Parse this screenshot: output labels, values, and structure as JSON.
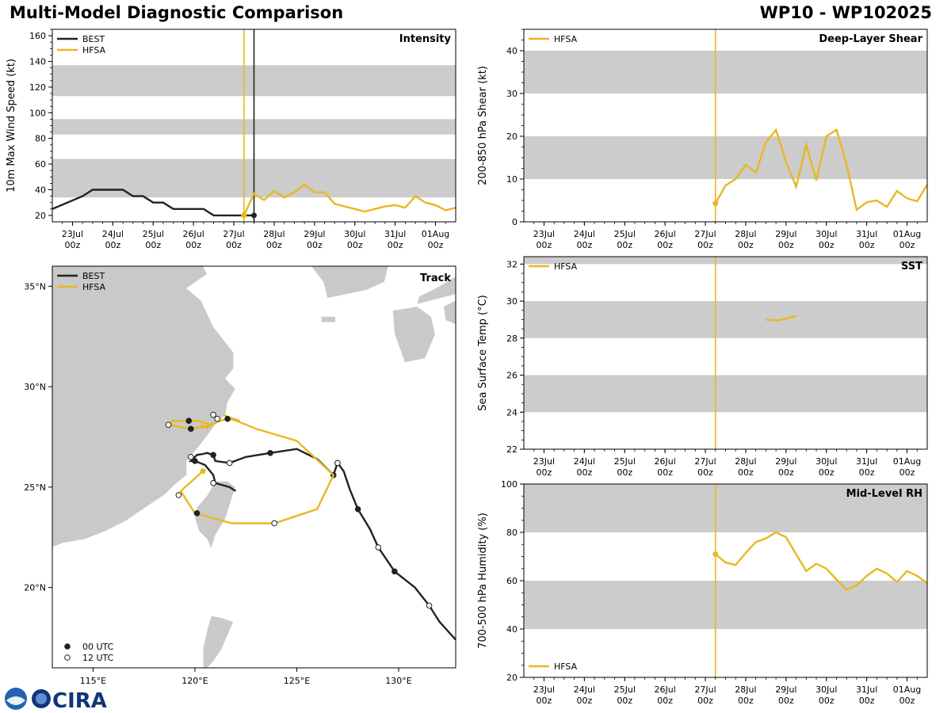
{
  "header": {
    "title": "Multi-Model Diagnostic Comparison",
    "storm_id": "WP10 - WP102025"
  },
  "logo": {
    "name": "CIRA"
  },
  "colors": {
    "best": "#222222",
    "hfsa": "#e8b820",
    "band": "#cccccc",
    "land": "#c9c9c9"
  },
  "time_axis": {
    "start": "22Jul 12z",
    "end": "01Aug 12z",
    "ticks": [
      {
        "t": 0.5,
        "day": "23Jul",
        "hour": "00z"
      },
      {
        "t": 1.5,
        "day": "24Jul",
        "hour": "00z"
      },
      {
        "t": 2.5,
        "day": "25Jul",
        "hour": "00z"
      },
      {
        "t": 3.5,
        "day": "26Jul",
        "hour": "00z"
      },
      {
        "t": 4.5,
        "day": "27Jul",
        "hour": "00z"
      },
      {
        "t": 5.5,
        "day": "28Jul",
        "hour": "00z"
      },
      {
        "t": 6.5,
        "day": "29Jul",
        "hour": "00z"
      },
      {
        "t": 7.5,
        "day": "30Jul",
        "hour": "00z"
      },
      {
        "t": 8.5,
        "day": "31Jul",
        "hour": "00z"
      },
      {
        "t": 9.5,
        "day": "01Aug",
        "hour": "00z"
      }
    ]
  },
  "chart_data": [
    {
      "id": "intensity",
      "type": "line",
      "title": "Intensity",
      "ylabel": "10m Max Wind Speed (kt)",
      "xlim": [
        0,
        10
      ],
      "ylim": [
        15,
        165
      ],
      "yticks": [
        20,
        40,
        60,
        80,
        100,
        120,
        140,
        160
      ],
      "bands": [
        [
          34,
          64
        ],
        [
          83,
          95
        ],
        [
          113,
          137
        ]
      ],
      "vlines": [
        {
          "t": 4.75,
          "series": "HFSA"
        },
        {
          "t": 5.0,
          "series": "BEST"
        }
      ],
      "legend": [
        "BEST",
        "HFSA"
      ],
      "series": [
        {
          "name": "BEST",
          "x": [
            0,
            0.75,
            1,
            1.25,
            1.5,
            1.75,
            2,
            2.25,
            2.5,
            2.75,
            3,
            3.25,
            3.5,
            3.75,
            4,
            4.25,
            4.5,
            4.75,
            5
          ],
          "y": [
            25,
            35,
            40,
            40,
            40,
            40,
            35,
            35,
            30,
            30,
            25,
            25,
            25,
            25,
            20,
            20,
            20,
            20,
            20
          ],
          "end_marker": true
        },
        {
          "name": "HFSA",
          "x": [
            4.75,
            5,
            5.25,
            5.5,
            5.75,
            6,
            6.25,
            6.5,
            6.75,
            7,
            7.25,
            7.5,
            7.75,
            8,
            8.25,
            8.5,
            8.75,
            9,
            9.25,
            9.5,
            9.75,
            10
          ],
          "y": [
            20,
            37,
            32,
            39,
            34,
            38,
            44,
            38,
            38,
            29,
            27,
            25,
            23,
            25,
            27,
            28,
            26,
            35,
            30,
            28,
            24,
            26
          ],
          "start_marker": true
        }
      ]
    },
    {
      "id": "shear",
      "type": "line",
      "title": "Deep-Layer Shear",
      "ylabel": "200-850 hPa Shear (kt)",
      "xlim": [
        0,
        10
      ],
      "ylim": [
        0,
        45
      ],
      "yticks": [
        0,
        10,
        20,
        30,
        40
      ],
      "bands": [
        [
          10,
          20
        ],
        [
          30,
          40
        ]
      ],
      "vlines": [
        {
          "t": 4.75,
          "series": "HFSA"
        }
      ],
      "legend": [
        "HFSA"
      ],
      "series": [
        {
          "name": "HFSA",
          "x": [
            4.75,
            5,
            5.25,
            5.5,
            5.75,
            6,
            6.25,
            6.5,
            6.75,
            7,
            7.25,
            7.5,
            7.75,
            8,
            8.25,
            8.5,
            8.75,
            9,
            9.25,
            9.5,
            9.75,
            10
          ],
          "y": [
            4.3,
            8.5,
            10,
            13.3,
            11.5,
            18.5,
            21.5,
            14,
            8.2,
            18,
            9.7,
            20,
            21.5,
            13.5,
            2.8,
            4.6,
            5,
            3.5,
            7.2,
            5.5,
            4.8,
            8.7
          ],
          "start_marker": true
        }
      ]
    },
    {
      "id": "sst",
      "type": "line",
      "title": "SST",
      "ylabel": "Sea Surface Temp (°C)",
      "xlim": [
        0,
        10
      ],
      "ylim": [
        22,
        32.4
      ],
      "yticks": [
        22,
        24,
        26,
        28,
        30,
        32
      ],
      "bands": [
        [
          24,
          26
        ],
        [
          28,
          30
        ],
        [
          32,
          33
        ]
      ],
      "vlines": [
        {
          "t": 4.75,
          "series": "HFSA"
        }
      ],
      "legend": [
        "HFSA"
      ],
      "series": [
        {
          "name": "HFSA",
          "x": [
            6.0,
            6.25,
            6.5,
            6.75
          ],
          "y": [
            29.0,
            28.95,
            29.05,
            29.2
          ],
          "start_marker": false
        }
      ]
    },
    {
      "id": "rh",
      "type": "line",
      "title": "Mid-Level RH",
      "ylabel": "700-500 hPa Humidity (%)",
      "xlim": [
        0,
        10
      ],
      "ylim": [
        20,
        100
      ],
      "yticks": [
        20,
        40,
        60,
        80,
        100
      ],
      "bands": [
        [
          40,
          60
        ],
        [
          80,
          100
        ]
      ],
      "vlines": [
        {
          "t": 4.75,
          "series": "HFSA"
        }
      ],
      "legend": [
        "HFSA"
      ],
      "legend_pos": "bottom-left",
      "series": [
        {
          "name": "HFSA",
          "x": [
            4.75,
            5,
            5.25,
            5.5,
            5.75,
            6,
            6.25,
            6.5,
            6.75,
            7,
            7.25,
            7.5,
            7.75,
            8,
            8.25,
            8.5,
            8.75,
            9,
            9.25,
            9.5,
            9.75,
            10
          ],
          "y": [
            71,
            67.5,
            66.5,
            71.5,
            76,
            77.5,
            80,
            78,
            71,
            64,
            67,
            65,
            60.5,
            56.2,
            58,
            62,
            65,
            63,
            59.5,
            64,
            62,
            59
          ],
          "start_marker": true
        }
      ]
    },
    {
      "id": "track",
      "type": "map",
      "title": "Track",
      "lon_range": [
        113,
        132.8
      ],
      "lat_range": [
        16,
        36
      ],
      "lon_ticks": [
        {
          "v": 115,
          "label": "115°E"
        },
        {
          "v": 120,
          "label": "120°E"
        },
        {
          "v": 125,
          "label": "125°E"
        },
        {
          "v": 130,
          "label": "130°E"
        }
      ],
      "lat_ticks": [
        {
          "v": 20,
          "label": "20°N"
        },
        {
          "v": 25,
          "label": "25°N"
        },
        {
          "v": 30,
          "label": "30°N"
        },
        {
          "v": 35,
          "label": "35°N"
        }
      ],
      "legend": [
        "BEST",
        "HFSA"
      ],
      "marker_legend": [
        {
          "label": "00 UTC",
          "filled": true
        },
        {
          "label": "12 UTC",
          "filled": false
        }
      ],
      "best_track": {
        "lon": [
          132.8,
          132.0,
          131.5,
          130.8,
          129.8,
          129.0,
          128.6,
          128.0,
          127.6,
          127.3,
          127.0,
          126.8,
          126.0,
          125.0,
          123.7,
          122.5,
          121.7,
          121.0,
          120.9,
          120.6,
          120.4,
          120.1,
          119.8,
          120.0,
          120.5,
          120.9,
          121.0,
          121.7,
          122.0
        ],
        "lat": [
          17.4,
          18.3,
          19.1,
          20.0,
          20.8,
          22.0,
          22.9,
          23.9,
          24.9,
          25.8,
          26.2,
          25.6,
          26.4,
          26.9,
          26.7,
          26.5,
          26.2,
          26.3,
          26.6,
          26.7,
          26.65,
          26.6,
          26.3,
          26.3,
          26.1,
          25.6,
          25.2,
          25.0,
          24.8
        ],
        "markers": [
          {
            "lon": 131.5,
            "lat": 19.1,
            "filled": false
          },
          {
            "lon": 129.8,
            "lat": 20.8,
            "filled": true
          },
          {
            "lon": 129.0,
            "lat": 22.0,
            "filled": false
          },
          {
            "lon": 128.0,
            "lat": 23.9,
            "filled": true
          },
          {
            "lon": 126.8,
            "lat": 25.6,
            "filled": true
          },
          {
            "lon": 127.0,
            "lat": 26.2,
            "filled": false
          },
          {
            "lon": 123.7,
            "lat": 26.7,
            "filled": true
          },
          {
            "lon": 121.7,
            "lat": 26.2,
            "filled": false
          },
          {
            "lon": 120.9,
            "lat": 26.6,
            "filled": true
          },
          {
            "lon": 120.0,
            "lat": 26.3,
            "filled": true
          },
          {
            "lon": 119.8,
            "lat": 26.5,
            "filled": false
          },
          {
            "lon": 120.9,
            "lat": 25.2,
            "filled": false
          }
        ]
      },
      "hfsa_track": {
        "lon": [
          120.4,
          119.3,
          120.0,
          121.8,
          123.9,
          126.0,
          126.8,
          125.0,
          123.0,
          121.8,
          121.4,
          121.6,
          122.2,
          121.5,
          121.0,
          120.5,
          119.7,
          118.8,
          118.9,
          119.4,
          120.1,
          120.8,
          120.6,
          120.3
        ],
        "lat": [
          25.8,
          24.8,
          23.7,
          23.2,
          23.2,
          23.9,
          25.6,
          27.3,
          27.9,
          28.4,
          28.6,
          28.5,
          28.3,
          28.4,
          28.2,
          28.0,
          27.9,
          28.1,
          28.3,
          28.3,
          28.3,
          28.1,
          27.95,
          28.1
        ],
        "start_marker": {
          "lon": 120.4,
          "lat": 25.8
        },
        "markers": [
          {
            "lon": 119.2,
            "lat": 24.6,
            "filled": false
          },
          {
            "lon": 120.1,
            "lat": 23.7,
            "filled": true
          },
          {
            "lon": 123.9,
            "lat": 23.2,
            "filled": false
          },
          {
            "lon": 127.0,
            "lat": 26.2,
            "filled": false
          },
          {
            "lon": 121.6,
            "lat": 28.4,
            "filled": true
          },
          {
            "lon": 121.1,
            "lat": 28.4,
            "filled": false
          },
          {
            "lon": 120.9,
            "lat": 28.6,
            "filled": false
          },
          {
            "lon": 119.7,
            "lat": 28.3,
            "filled": true
          },
          {
            "lon": 119.8,
            "lat": 27.9,
            "filled": true
          },
          {
            "lon": 118.7,
            "lat": 28.1,
            "filled": false
          }
        ]
      }
    }
  ]
}
